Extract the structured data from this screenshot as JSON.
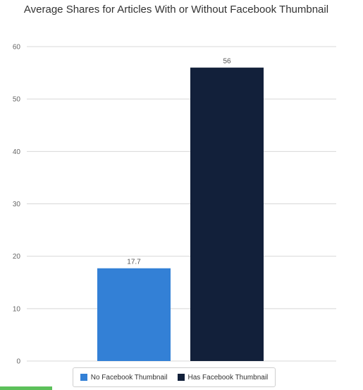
{
  "chart_data": {
    "type": "bar",
    "title": "Average Shares for Articles With or Without Facebook Thumbnail",
    "categories": [
      "No Facebook Thumbnail",
      "Has Facebook Thumbnail"
    ],
    "values": [
      17.7,
      56
    ],
    "data_labels": [
      "17.7",
      "56"
    ],
    "colors": [
      "#3380d6",
      "#12203a"
    ],
    "ylim": [
      0,
      60
    ],
    "yticks": [
      0,
      10,
      20,
      30,
      40,
      50,
      60
    ],
    "xlabel": "",
    "ylabel": "",
    "grid": true,
    "legend_position": "bottom"
  }
}
